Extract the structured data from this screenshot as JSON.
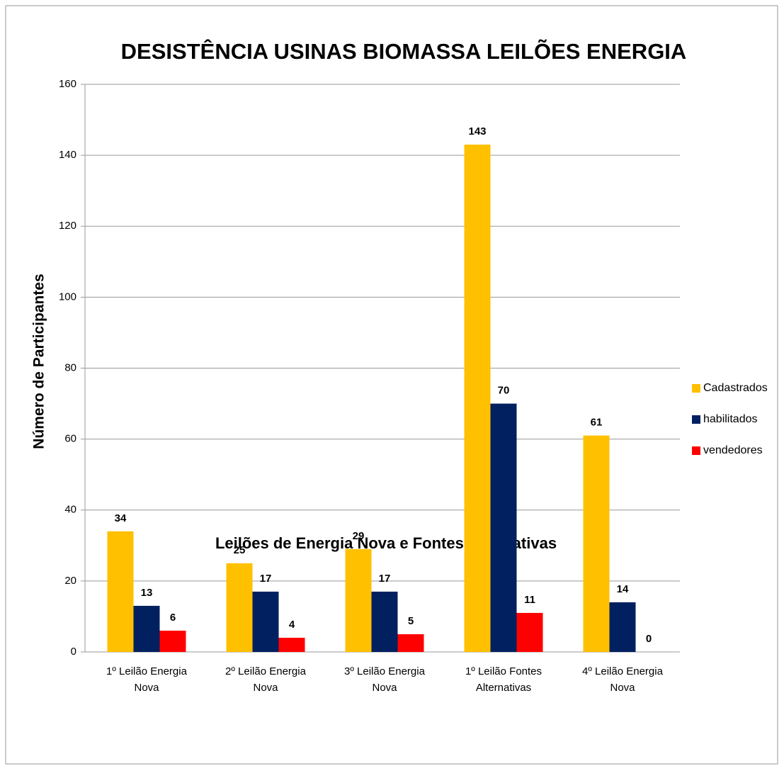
{
  "chart_data": {
    "type": "bar",
    "title": "DESISTÊNCIA USINAS BIOMASSA LEILÕES ENERGIA",
    "x_label": "Leilões de Energia Nova e Fontes Alternativas",
    "y_label": "Número de  Participantes",
    "categories": [
      "1º Leilão Energia Nova",
      "2º Leilão Energia Nova",
      "3º Leilão Energia Nova",
      "1º Leilão Fontes Alternativas",
      "4º Leilão Energia Nova"
    ],
    "series": [
      {
        "name": "Cadastrados",
        "color": "#FFC000",
        "values": [
          34,
          25,
          29,
          143,
          61
        ]
      },
      {
        "name": "habilitados",
        "color": "#002060",
        "values": [
          13,
          17,
          17,
          70,
          14
        ]
      },
      {
        "name": "vendedores",
        "color": "#FF0000",
        "values": [
          6,
          4,
          5,
          11,
          0
        ]
      }
    ],
    "ylim": [
      0,
      160
    ],
    "yticks": [
      0,
      20,
      40,
      60,
      80,
      100,
      120,
      140,
      160
    ],
    "grid": true,
    "legend": "right"
  }
}
